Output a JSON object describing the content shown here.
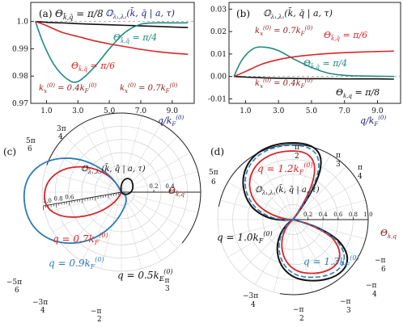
{
  "chart_data": [
    {
      "panel": "(a)",
      "type": "line",
      "xlabel": "q/k",
      "xlabel_sup": "(0)",
      "xlabel_sub": "F",
      "ylim": [
        0.97,
        1.007
      ],
      "xlim": [
        0,
        10.4
      ],
      "x_ticks": [
        1.0,
        3.0,
        5.0,
        7.0,
        9.0
      ],
      "x_tick_labels": [
        "1.0",
        "3.0",
        "5.0",
        "7.0",
        "9.0"
      ],
      "y_ticks": [
        0.97,
        0.98,
        0.99,
        1.0
      ],
      "y_tick_labels": [
        "0.97",
        "0.98",
        "0.99",
        "1.0"
      ],
      "legend_title": "𝕆λ₁,λ₂(k̄, q̄ | a, τ)",
      "annotations": [
        "Θk̄,q̄ = π/8",
        "Θk̄,q̄ = π/4",
        "Θk̄,q̄ = π/6",
        "kx(0) = 0.4kF(0)",
        "kx(0) = 0.7kF(0)"
      ],
      "series": [
        {
          "name": "π/8",
          "color": "#111111",
          "x": [
            0.3,
            1,
            2,
            3,
            4,
            5,
            6,
            7,
            8,
            9,
            10
          ],
          "values": [
            1.0,
            0.9997,
            0.9995,
            0.9992,
            0.999,
            0.9988,
            0.9986,
            0.9984,
            0.9982,
            0.998,
            0.9978
          ]
        },
        {
          "name": "π/4",
          "color": "#1f8a80",
          "x": [
            0.3,
            0.8,
            1.5,
            2.3,
            3,
            4,
            5,
            6,
            7,
            8,
            9,
            10
          ],
          "values": [
            1.0,
            0.992,
            0.984,
            0.979,
            0.978,
            0.983,
            0.99,
            0.996,
            0.999,
            0.9995,
            0.9995,
            0.9995
          ]
        },
        {
          "name": "π/6",
          "color": "#d8262a",
          "x": [
            0.3,
            1,
            2,
            3,
            4,
            5,
            6,
            7,
            8,
            9,
            10
          ],
          "values": [
            1.0,
            0.9985,
            0.996,
            0.9945,
            0.993,
            0.9918,
            0.9908,
            0.9898,
            0.989,
            0.9884,
            0.988
          ]
        }
      ]
    },
    {
      "panel": "(b)",
      "type": "line",
      "xlabel": "q/k",
      "xlabel_sup": "(0)",
      "xlabel_sub": "F",
      "ylim": [
        -0.012,
        0.033
      ],
      "xlim": [
        0,
        10.4
      ],
      "x_ticks": [
        1.0,
        3.0,
        5.0,
        7.0,
        9.0
      ],
      "x_tick_labels": [
        "1.0",
        "3.0",
        "5.0",
        "7.0",
        "9.0"
      ],
      "y_ticks": [
        -0.01,
        0.0,
        0.01,
        0.02,
        0.03
      ],
      "y_tick_labels": [
        "-0.01",
        "0.00",
        "0.01",
        "0.02",
        "0.03"
      ],
      "legend_title": "𝕆λ₁,λ₂(k̄, q̄ | a, τ)",
      "annotations": [
        "kx(0) = 0.7kF(0)",
        "Θk̄,q̄ = π/6",
        "Θk̄,q̄ = π/4",
        "kx(0) = 0.4kF(0)",
        "Θk,q = π/8"
      ],
      "series": [
        {
          "name": "π/8",
          "color": "#111111",
          "x": [
            0.3,
            1,
            2,
            3,
            4,
            5,
            6,
            7,
            8,
            9,
            10
          ],
          "values": [
            0.0,
            -0.0003,
            -0.0006,
            -0.0008,
            -0.0009,
            -0.001,
            -0.001,
            -0.0011,
            -0.0011,
            -0.0011,
            -0.0012
          ]
        },
        {
          "name": "π/4",
          "color": "#1f8a80",
          "x": [
            0.3,
            0.8,
            1.5,
            2.2,
            3,
            4,
            5,
            6,
            7,
            8,
            9,
            10
          ],
          "values": [
            0.0,
            0.0075,
            0.0125,
            0.013,
            0.0115,
            0.0075,
            0.004,
            0.0015,
            0.0005,
            0.0002,
            0.0001,
            0.0
          ]
        },
        {
          "name": "π/6",
          "color": "#d8262a",
          "x": [
            0.3,
            1,
            2,
            3,
            4,
            5,
            6,
            7,
            8,
            9,
            10
          ],
          "values": [
            0.0,
            0.0022,
            0.0055,
            0.0075,
            0.0088,
            0.0096,
            0.0102,
            0.0106,
            0.0109,
            0.0111,
            0.0113
          ]
        }
      ]
    },
    {
      "panel": "(c)",
      "type": "polar",
      "theta_label": "Θk̄,q̄",
      "legend_title": "𝕆λ₁,λ₂(k̄, q̄ | a, τ)",
      "angle_labels": [
        "5π/6",
        "3π/4",
        "−5π/6",
        "−3π/4",
        "−π/2",
        "−π/3"
      ],
      "radial_ticks": [
        0.2,
        0.4
      ],
      "radial_tick_labels": [
        "0.2",
        "0.4"
      ],
      "radial_ticks_left": [
        1.0,
        0.8,
        0.6
      ],
      "radial_tick_labels_left": [
        "1.0",
        "0.8",
        "0.6"
      ],
      "series": [
        {
          "name": "q = 0.7kF(0)",
          "color": "#d8262a",
          "rmax": 0.75
        },
        {
          "name": "q = 0.9kF(0)",
          "color": "#2c7bb6",
          "rmax": 1.0
        },
        {
          "name": "q = 0.5kF(0)",
          "color": "#111111",
          "rmax": 0.12
        }
      ]
    },
    {
      "panel": "(d)",
      "type": "polar",
      "theta_label": "Θk,q",
      "legend_title": "𝕆λ₁,λ₂(k̄, q̄ | a, τ)",
      "angle_labels": [
        "π/2",
        "π/3",
        "π/4",
        "5π/6",
        "−π/6",
        "−π/4",
        "−π/3",
        "−π/2",
        "−3π/4"
      ],
      "radial_ticks": [
        0.2,
        0.4,
        0.6,
        0.8,
        1.0
      ],
      "radial_tick_labels": [
        "0.2",
        "0.4",
        "0.6",
        "0.8",
        "1.0"
      ],
      "series": [
        {
          "name": "q = 1.2kF(0)",
          "color": "#d8262a",
          "rmax": 0.9
        },
        {
          "name": "q = 1.0kF(0)",
          "color": "#111111",
          "rmax": 1.05
        },
        {
          "name": "q = 1.3kF(0)",
          "color": "#2c7bb6",
          "rmax": 0.98
        }
      ]
    }
  ],
  "panels": {
    "a_label": "(a)",
    "b_label": "(b)",
    "c_label": "(c)",
    "d_label": "(d)"
  },
  "colors": {
    "black": "#111111",
    "teal": "#1f8a80",
    "red": "#d8262a",
    "blue": "#2c7bb6",
    "navy": "#23237a",
    "darkred": "#8b1a1a",
    "grid": "#cfcfcf"
  }
}
